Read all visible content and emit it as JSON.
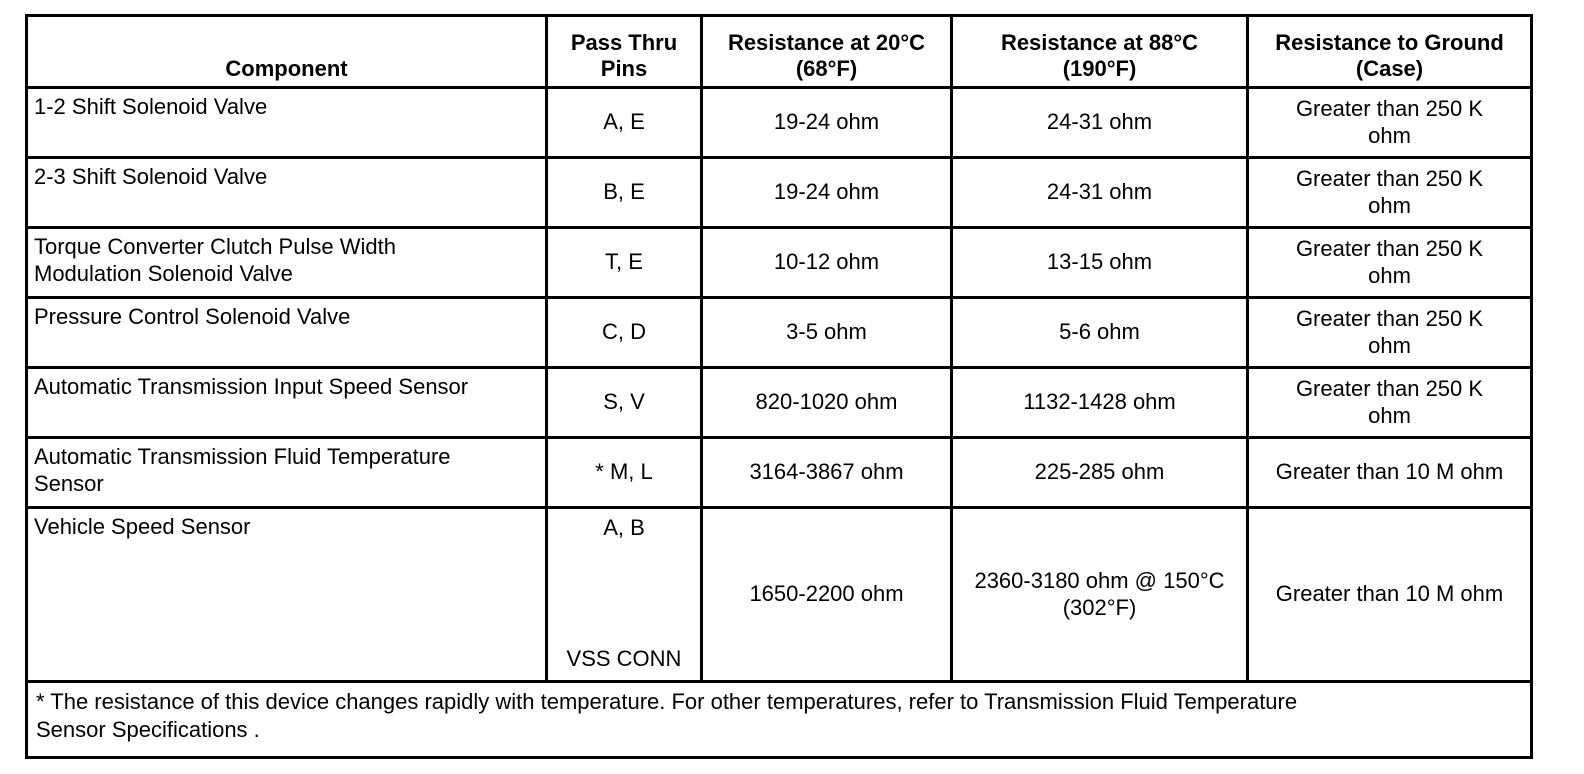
{
  "table": {
    "headers": [
      {
        "label": "Component"
      },
      {
        "label": "Pass Thru\nPins"
      },
      {
        "label": "Resistance at 20°C\n(68°F)"
      },
      {
        "label": "Resistance at 88°C\n(190°F)"
      },
      {
        "label": "Resistance to Ground\n(Case)"
      }
    ],
    "rows": [
      {
        "component": "1-2 Shift Solenoid Valve",
        "pins": "A, E",
        "resistance_20c": "19-24 ohm",
        "resistance_88c": "24-31 ohm",
        "resistance_ground": "Greater than 250 K\nohm"
      },
      {
        "component": "2-3 Shift Solenoid Valve",
        "pins": "B, E",
        "resistance_20c": "19-24 ohm",
        "resistance_88c": "24-31 ohm",
        "resistance_ground": "Greater than 250 K\nohm"
      },
      {
        "component": "Torque Converter Clutch Pulse Width\nModulation Solenoid Valve",
        "pins": "T, E",
        "resistance_20c": "10-12 ohm",
        "resistance_88c": "13-15 ohm",
        "resistance_ground": "Greater than 250 K\nohm"
      },
      {
        "component": "Pressure Control Solenoid Valve",
        "pins": "C, D",
        "resistance_20c": "3-5 ohm",
        "resistance_88c": "5-6 ohm",
        "resistance_ground": "Greater than 250 K\nohm"
      },
      {
        "component": "Automatic Transmission Input Speed Sensor",
        "pins": "S, V",
        "resistance_20c": "820-1020 ohm",
        "resistance_88c": "1132-1428 ohm",
        "resistance_ground": "Greater than 250 K\nohm"
      },
      {
        "component": "Automatic Transmission Fluid Temperature\nSensor",
        "pins": "* M, L",
        "resistance_20c": "3164-3867 ohm",
        "resistance_88c": "225-285 ohm",
        "resistance_ground": "Greater than 10 M ohm"
      },
      {
        "component": "Vehicle Speed Sensor",
        "pins": "A, B",
        "pins_bottom": "VSS CONN",
        "resistance_20c": "1650-2200 ohm",
        "resistance_88c": "2360-3180 ohm @ 150°C\n(302°F)",
        "resistance_ground": "Greater than 10 M ohm",
        "tall": true
      }
    ],
    "footnote": "* The resistance of this device changes rapidly with temperature. For other temperatures, refer to Transmission Fluid Temperature\nSensor Specifications ."
  }
}
